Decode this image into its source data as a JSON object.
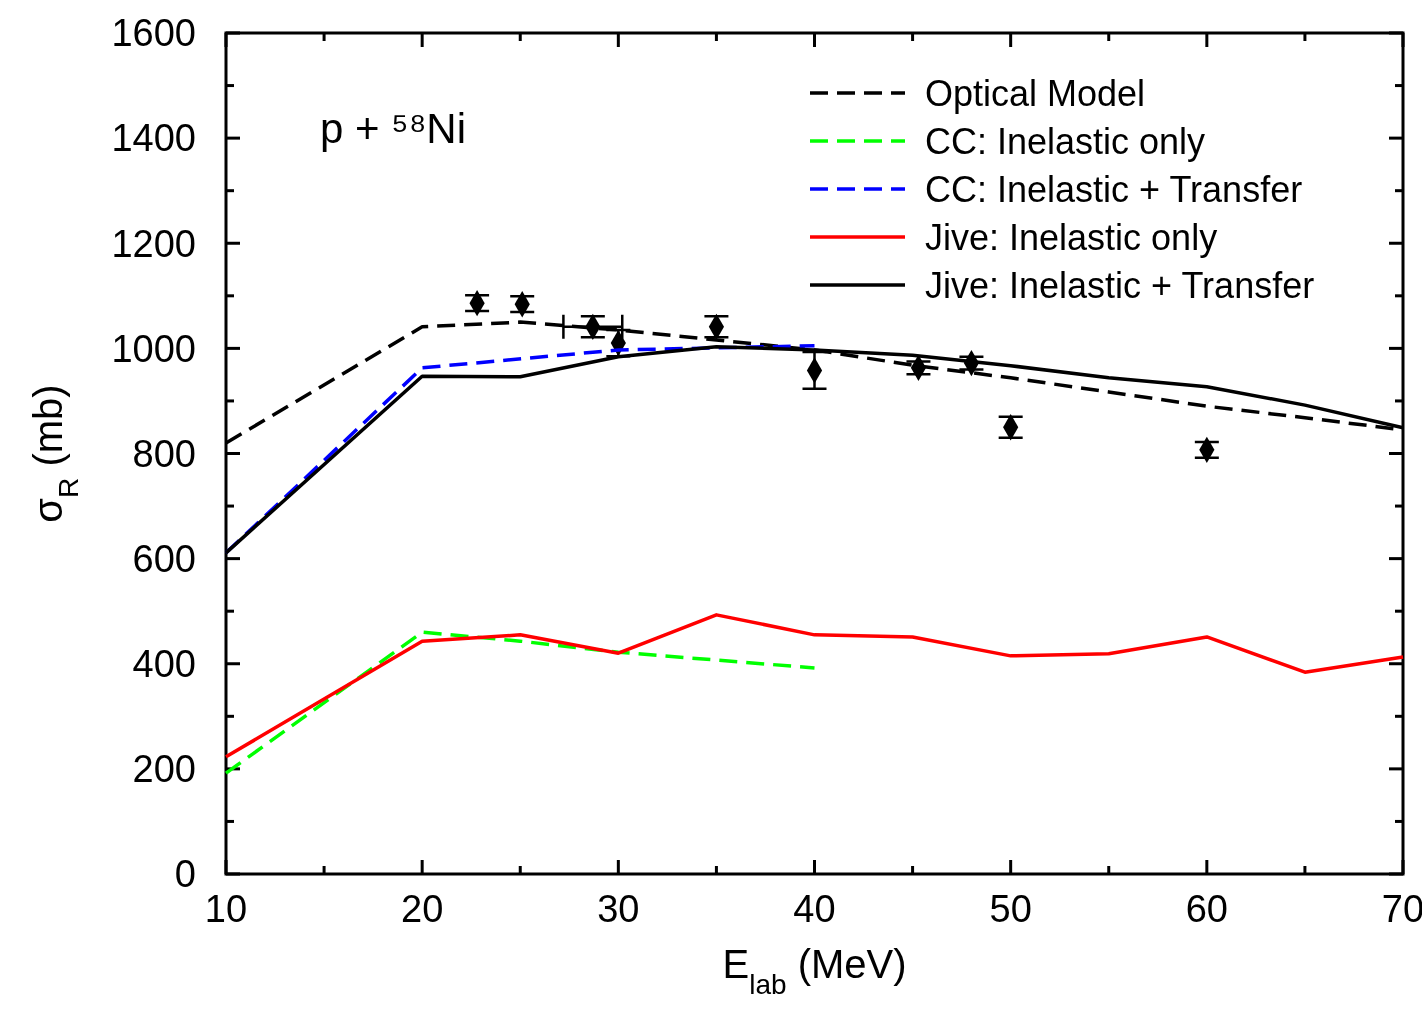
{
  "chart_data": {
    "type": "line",
    "xlabel": "E$_{lab}$ (MeV)",
    "ylabel": "σ$_{R}$ (mb)",
    "annotations": [
      "p + ⁵⁸Ni"
    ],
    "xlim": [
      10,
      70
    ],
    "xticks": [
      10,
      20,
      30,
      40,
      50,
      60,
      70
    ],
    "ylim": [
      0,
      1600
    ],
    "yticks": [
      0,
      200,
      400,
      600,
      800,
      1000,
      1200,
      1400,
      1600
    ],
    "grid": false,
    "legend": "top right",
    "series": [
      {
        "name": "Optical Model",
        "color": "#000000",
        "line_style": "dashed",
        "x": [
          10,
          20,
          25,
          30,
          35,
          40,
          45,
          50,
          55,
          60,
          65,
          70
        ],
        "values": [
          820,
          1041,
          1050,
          1035,
          1016,
          997,
          968,
          944,
          917,
          890,
          868,
          845
        ]
      },
      {
        "name": "CC: Inelastic only",
        "color": "#00ff00",
        "line_style": "dashed",
        "x": [
          10,
          20,
          25,
          30,
          35,
          40
        ],
        "values": [
          192,
          460,
          443,
          422,
          407,
          392
        ]
      },
      {
        "name": "CC: Inelastic + Transfer",
        "color": "#0000ff",
        "line_style": "dashed",
        "x": [
          10,
          20,
          30,
          40
        ],
        "values": [
          611,
          963,
          997,
          1005
        ]
      },
      {
        "name": "Jive: Inelastic only",
        "color": "#ff0000",
        "line_style": "solid",
        "x": [
          10,
          20,
          25,
          30,
          35,
          40,
          45,
          50,
          55,
          60,
          65,
          70
        ],
        "values": [
          223,
          443,
          455,
          420,
          493,
          455,
          451,
          415,
          419,
          451,
          384,
          413
        ]
      },
      {
        "name": "Jive: Inelastic + Transfer",
        "color": "#000000",
        "line_style": "solid",
        "x": [
          10,
          20,
          25,
          30,
          35,
          40,
          45,
          50,
          55,
          60,
          65,
          70
        ],
        "values": [
          611,
          947,
          946,
          984,
          1003,
          997,
          987,
          967,
          944,
          927,
          892,
          849
        ]
      },
      {
        "type": "scatter",
        "marker": "diamond",
        "color": "#000000",
        "x": [
          22.8,
          25.1,
          28.7,
          30,
          35,
          40,
          45.3,
          48,
          50,
          60
        ],
        "values": [
          1086,
          1084,
          1041,
          1010,
          1041,
          958,
          963,
          972,
          850,
          807
        ],
        "errors": [
          15,
          15,
          20,
          25,
          20,
          35,
          12,
          12,
          20,
          15
        ],
        "xerrors": [
          null,
          null,
          1.5,
          null,
          null,
          null,
          null,
          null,
          null,
          null
        ]
      }
    ]
  }
}
